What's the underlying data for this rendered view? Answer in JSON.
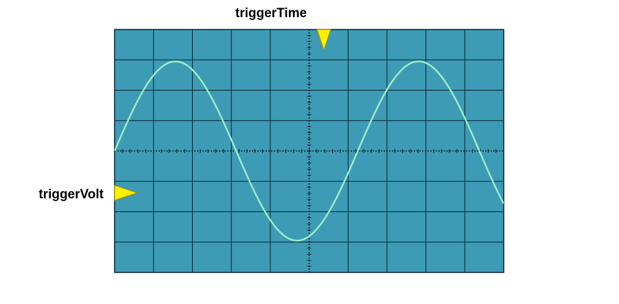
{
  "labels": {
    "trigger_time": "triggerTime",
    "trigger_volt": "triggerVolt"
  },
  "screen": {
    "divisions_x": 10,
    "divisions_y": 8
  },
  "waveform": {
    "shape": "sine",
    "cycles_shown": 1.6
  },
  "colors": {
    "screen_background": "#3d9bb6",
    "grid_line": "#0a1f2a",
    "trace": "#9cecc8",
    "marker": "#ffee00",
    "marker_outline": "#9a8a00",
    "label_text": "#000000"
  }
}
